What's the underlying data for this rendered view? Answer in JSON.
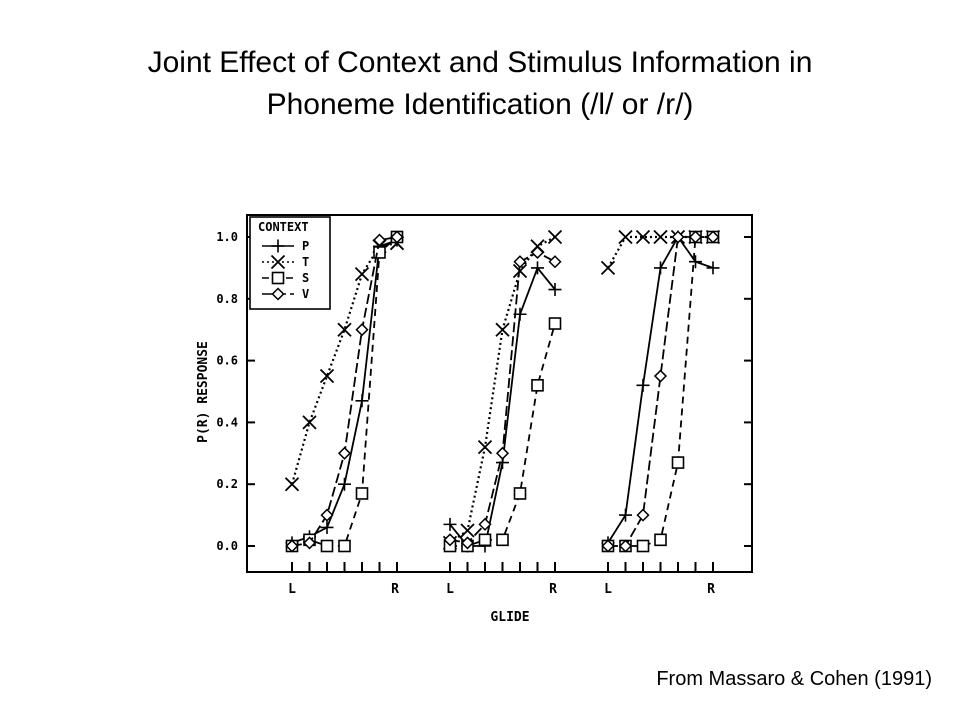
{
  "slide": {
    "title_line1": "Joint Effect of Context and Stimulus Information in",
    "title_line2": "Phoneme Identification  (/l/ or /r/)",
    "credit": "From Massaro & Cohen (1991)"
  },
  "chart_data": {
    "type": "line",
    "ylabel": "P(R) RESPONSE",
    "xlabel": "GLIDE",
    "ylim": [
      0,
      1
    ],
    "yticks": [
      "0.0",
      "0.2",
      "0.4",
      "0.6",
      "0.8",
      "1.0"
    ],
    "legend": {
      "title": "CONTEXT",
      "position": "top-left"
    },
    "series_styles": [
      {
        "name": "P",
        "marker": "plus",
        "dash": "solid"
      },
      {
        "name": "T",
        "marker": "x",
        "dash": "dotted"
      },
      {
        "name": "S",
        "marker": "square",
        "dash": "dashed"
      },
      {
        "name": "V",
        "marker": "diamond",
        "dash": "solid-dash"
      }
    ],
    "panels": [
      {
        "x_labels": [
          "L",
          "R"
        ],
        "steps": 7,
        "series": [
          {
            "name": "P",
            "values": [
              0.01,
              0.03,
              0.06,
              0.2,
              0.47,
              0.97,
              0.99
            ]
          },
          {
            "name": "T",
            "values": [
              0.2,
              0.4,
              0.55,
              0.7,
              0.88,
              0.97,
              0.98
            ]
          },
          {
            "name": "S",
            "values": [
              0.0,
              0.02,
              0.0,
              0.0,
              0.17,
              0.95,
              1.0
            ]
          },
          {
            "name": "V",
            "values": [
              0.0,
              0.01,
              0.1,
              0.3,
              0.7,
              0.99,
              1.0
            ]
          }
        ]
      },
      {
        "x_labels": [
          "L",
          "R"
        ],
        "steps": 7,
        "series": [
          {
            "name": "P",
            "values": [
              0.07,
              0.0,
              0.0,
              0.27,
              0.75,
              0.9,
              0.83
            ]
          },
          {
            "name": "T",
            "values": [
              0.01,
              0.05,
              0.32,
              0.7,
              0.89,
              0.97,
              1.0
            ]
          },
          {
            "name": "S",
            "values": [
              0.0,
              0.0,
              0.02,
              0.02,
              0.17,
              0.52,
              0.72
            ]
          },
          {
            "name": "V",
            "values": [
              0.02,
              0.01,
              0.07,
              0.3,
              0.92,
              0.95,
              0.92
            ]
          }
        ]
      },
      {
        "x_labels": [
          "L",
          "R"
        ],
        "steps": 7,
        "series": [
          {
            "name": "P",
            "values": [
              0.01,
              0.1,
              0.52,
              0.9,
              1.0,
              0.92,
              0.9
            ]
          },
          {
            "name": "T",
            "values": [
              0.9,
              1.0,
              1.0,
              1.0,
              1.0,
              1.0,
              1.0
            ]
          },
          {
            "name": "S",
            "values": [
              0.0,
              0.0,
              0.0,
              0.02,
              0.27,
              1.0,
              1.0
            ]
          },
          {
            "name": "V",
            "values": [
              0.0,
              0.0,
              0.1,
              0.55,
              1.0,
              1.0,
              1.0
            ]
          }
        ]
      }
    ]
  }
}
